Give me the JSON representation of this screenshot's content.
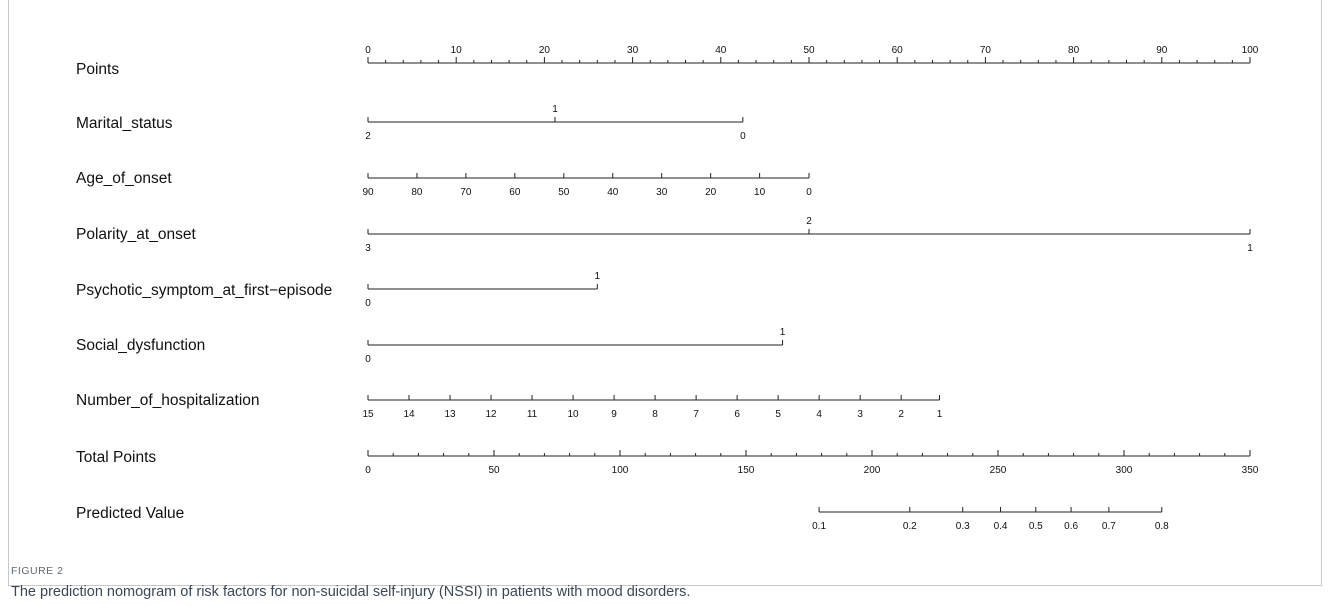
{
  "figure": {
    "label": "FIGURE 2",
    "caption": "The prediction nomogram of risk factors for non-suicidal self-injury (NSSI) in patients with mood disorders."
  },
  "chart_data": {
    "type": "nomogram",
    "rows": [
      {
        "name": "Points",
        "kind": "axis",
        "range": [
          0,
          100
        ],
        "major": [
          0,
          10,
          20,
          30,
          40,
          50,
          60,
          70,
          80,
          90,
          100
        ],
        "minor_step": 2,
        "labels_above": true,
        "ticks": [
          {
            "label": "0",
            "value": 0
          },
          {
            "label": "10",
            "value": 10
          },
          {
            "label": "20",
            "value": 20
          },
          {
            "label": "30",
            "value": 30
          },
          {
            "label": "40",
            "value": 40
          },
          {
            "label": "50",
            "value": 50
          },
          {
            "label": "60",
            "value": 60
          },
          {
            "label": "70",
            "value": 70
          },
          {
            "label": "80",
            "value": 80
          },
          {
            "label": "90",
            "value": 90
          },
          {
            "label": "100",
            "value": 100
          }
        ]
      },
      {
        "name": "Marital_status",
        "kind": "variable",
        "ticks": [
          {
            "label": "2",
            "points": 0,
            "pos": "below"
          },
          {
            "label": "1",
            "points": 21.2,
            "pos": "above"
          },
          {
            "label": "0",
            "points": 42.5,
            "pos": "below"
          }
        ]
      },
      {
        "name": "Age_of_onset",
        "kind": "variable",
        "ticks": [
          {
            "label": "90",
            "points": 0,
            "pos": "below"
          },
          {
            "label": "80",
            "points": 5.55,
            "pos": "below"
          },
          {
            "label": "70",
            "points": 11.1,
            "pos": "below"
          },
          {
            "label": "60",
            "points": 16.65,
            "pos": "below"
          },
          {
            "label": "50",
            "points": 22.2,
            "pos": "below"
          },
          {
            "label": "40",
            "points": 27.75,
            "pos": "below"
          },
          {
            "label": "30",
            "points": 33.3,
            "pos": "below"
          },
          {
            "label": "20",
            "points": 38.85,
            "pos": "below"
          },
          {
            "label": "10",
            "points": 44.4,
            "pos": "below"
          },
          {
            "label": "0",
            "points": 50,
            "pos": "below"
          }
        ]
      },
      {
        "name": "Polarity_at_onset",
        "kind": "variable",
        "ticks": [
          {
            "label": "3",
            "points": 0,
            "pos": "below"
          },
          {
            "label": "2",
            "points": 50,
            "pos": "above"
          },
          {
            "label": "1",
            "points": 100,
            "pos": "below"
          }
        ]
      },
      {
        "name": "Psychotic_symptom_at_first−episode",
        "kind": "variable",
        "ticks": [
          {
            "label": "0",
            "points": 0,
            "pos": "below"
          },
          {
            "label": "1",
            "points": 26,
            "pos": "above"
          }
        ]
      },
      {
        "name": "Social_dysfunction",
        "kind": "variable",
        "ticks": [
          {
            "label": "0",
            "points": 0,
            "pos": "below"
          },
          {
            "label": "1",
            "points": 47,
            "pos": "above"
          }
        ]
      },
      {
        "name": "Number_of_hospitalization",
        "kind": "variable",
        "ticks": [
          {
            "label": "15",
            "points": 0,
            "pos": "below"
          },
          {
            "label": "14",
            "points": 4.65,
            "pos": "below"
          },
          {
            "label": "13",
            "points": 9.3,
            "pos": "below"
          },
          {
            "label": "12",
            "points": 13.95,
            "pos": "below"
          },
          {
            "label": "11",
            "points": 18.6,
            "pos": "below"
          },
          {
            "label": "10",
            "points": 23.25,
            "pos": "below"
          },
          {
            "label": "9",
            "points": 27.9,
            "pos": "below"
          },
          {
            "label": "8",
            "points": 32.55,
            "pos": "below"
          },
          {
            "label": "7",
            "points": 37.2,
            "pos": "below"
          },
          {
            "label": "6",
            "points": 41.85,
            "pos": "below"
          },
          {
            "label": "5",
            "points": 46.5,
            "pos": "below"
          },
          {
            "label": "4",
            "points": 51.15,
            "pos": "below"
          },
          {
            "label": "3",
            "points": 55.8,
            "pos": "below"
          },
          {
            "label": "2",
            "points": 60.45,
            "pos": "below"
          },
          {
            "label": "1",
            "points": 64.8,
            "pos": "below"
          }
        ]
      },
      {
        "name": "Total Points",
        "kind": "axis",
        "range": [
          0,
          350
        ],
        "major": [
          0,
          50,
          100,
          150,
          200,
          250,
          300,
          350
        ],
        "minor_step": 10,
        "labels_above": false,
        "ticks": [
          {
            "label": "0",
            "value": 0
          },
          {
            "label": "50",
            "value": 50
          },
          {
            "label": "100",
            "value": 100
          },
          {
            "label": "150",
            "value": 150
          },
          {
            "label": "200",
            "value": 200
          },
          {
            "label": "250",
            "value": 250
          },
          {
            "label": "300",
            "value": 300
          },
          {
            "label": "350",
            "value": 350
          }
        ]
      },
      {
        "name": "Predicted Value",
        "kind": "probability",
        "ticks": [
          {
            "label": "0.1",
            "total_points": 179
          },
          {
            "label": "0.2",
            "total_points": 215
          },
          {
            "label": "0.3",
            "total_points": 236
          },
          {
            "label": "0.4",
            "total_points": 251
          },
          {
            "label": "0.5",
            "total_points": 265
          },
          {
            "label": "0.6",
            "total_points": 279
          },
          {
            "label": "0.7",
            "total_points": 294
          },
          {
            "label": "0.8",
            "total_points": 315
          }
        ]
      }
    ]
  }
}
